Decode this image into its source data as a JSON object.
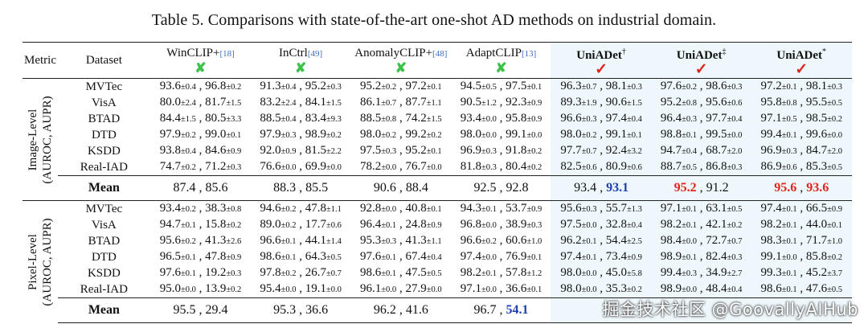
{
  "caption": "Table 5. Comparisons with state-of-the-art one-shot AD methods on industrial domain.",
  "header": {
    "metric": "Metric",
    "dataset": "Dataset",
    "methods": [
      {
        "name": "WinCLIP+",
        "ref": "[18]",
        "check": "✘",
        "check_color": "#3cc24a"
      },
      {
        "name": "InCtrl",
        "ref": "[49]",
        "check": "✘",
        "check_color": "#3cc24a"
      },
      {
        "name": "AnomalyCLIP+",
        "ref": "[48]",
        "check": "✘",
        "check_color": "#3cc24a"
      },
      {
        "name": "AdaptCLIP",
        "ref": "[13]",
        "check": "✘",
        "check_color": "#3cc24a"
      },
      {
        "name": "UniADet",
        "sup": "†",
        "check": "✓",
        "check_color": "#e0241c"
      },
      {
        "name": "UniADet",
        "sup": "‡",
        "check": "✓",
        "check_color": "#e0241c"
      },
      {
        "name": "UniADet",
        "sup": "*",
        "check": "✓",
        "check_color": "#e0241c"
      }
    ]
  },
  "groups": [
    {
      "level": "Image-Level",
      "metric": "(AUROC, AUPR)",
      "rows": [
        {
          "dataset": "MVTec",
          "cells": [
            [
              "93.6",
              "±0.4",
              "96.8",
              "±0.2"
            ],
            [
              "91.3",
              "±0.4",
              "95.2",
              "±0.3"
            ],
            [
              "95.2",
              "±0.2",
              "97.2",
              "±0.1"
            ],
            [
              "94.5",
              "±0.5",
              "97.5",
              "±0.1"
            ],
            [
              "96.3",
              "±0.7",
              "98.1",
              "±0.3"
            ],
            [
              "97.6",
              "±0.2",
              "98.6",
              "±0.3"
            ],
            [
              "97.2",
              "±0.1",
              "98.1",
              "±0.3"
            ]
          ]
        },
        {
          "dataset": "VisA",
          "cells": [
            [
              "80.0",
              "±2.4",
              "81.7",
              "±1.5"
            ],
            [
              "83.2",
              "±2.4",
              "84.1",
              "±1.5"
            ],
            [
              "86.1",
              "±0.7",
              "87.7",
              "±1.1"
            ],
            [
              "90.5",
              "±1.2",
              "92.3",
              "±0.9"
            ],
            [
              "89.3",
              "±1.9",
              "90.6",
              "±1.5"
            ],
            [
              "95.2",
              "±0.8",
              "95.6",
              "±0.6"
            ],
            [
              "95.8",
              "±0.8",
              "95.5",
              "±0.5"
            ]
          ]
        },
        {
          "dataset": "BTAD",
          "cells": [
            [
              "84.4",
              "±1.5",
              "80.5",
              "±3.3"
            ],
            [
              "88.5",
              "±0.4",
              "83.4",
              "±9.3"
            ],
            [
              "88.5",
              "±0.8",
              "74.2",
              "±1.5"
            ],
            [
              "93.4",
              "±0.0",
              "95.8",
              "±0.9"
            ],
            [
              "96.6",
              "±0.3",
              "97.4",
              "±0.4"
            ],
            [
              "96.4",
              "±0.3",
              "97.7",
              "±0.4"
            ],
            [
              "97.1",
              "±0.5",
              "98.5",
              "±0.2"
            ]
          ]
        },
        {
          "dataset": "DTD",
          "cells": [
            [
              "97.9",
              "±0.2",
              "99.0",
              "±0.1"
            ],
            [
              "97.9",
              "±0.3",
              "98.9",
              "±0.2"
            ],
            [
              "98.0",
              "±0.2",
              "99.2",
              "±0.2"
            ],
            [
              "98.0",
              "±0.0",
              "99.1",
              "±0.0"
            ],
            [
              "98.0",
              "±0.2",
              "99.1",
              "±0.1"
            ],
            [
              "98.8",
              "±0.1",
              "99.5",
              "±0.0"
            ],
            [
              "99.4",
              "±0.1",
              "99.6",
              "±0.0"
            ]
          ]
        },
        {
          "dataset": "KSDD",
          "cells": [
            [
              "93.8",
              "±0.4",
              "84.6",
              "±0.9"
            ],
            [
              "92.0",
              "±0.9",
              "81.5",
              "±2.2"
            ],
            [
              "97.5",
              "±0.3",
              "95.2",
              "±0.1"
            ],
            [
              "96.9",
              "±0.3",
              "91.8",
              "±0.2"
            ],
            [
              "97.7",
              "±0.7",
              "92.4",
              "±3.2"
            ],
            [
              "94.7",
              "±0.4",
              "68.7",
              "±2.0"
            ],
            [
              "96.9",
              "±0.3",
              "84.7",
              "±2.0"
            ]
          ]
        },
        {
          "dataset": "Real-IAD",
          "cells": [
            [
              "74.7",
              "±0.2",
              "71.2",
              "±0.3"
            ],
            [
              "76.6",
              "±0.0",
              "69.9",
              "±0.0"
            ],
            [
              "78.2",
              "±0.0",
              "76.7",
              "±0.0"
            ],
            [
              "81.8",
              "±0.3",
              "80.4",
              "±0.2"
            ],
            [
              "82.5",
              "±0.6",
              "80.9",
              "±0.6"
            ],
            [
              "88.7",
              "±0.5",
              "86.8",
              "±0.3"
            ],
            [
              "86.9",
              "±0.6",
              "85.3",
              "±0.5"
            ]
          ]
        }
      ],
      "mean_label": "Mean",
      "mean": [
        [
          {
            "t": "87.4"
          },
          {
            "t": "85.6"
          }
        ],
        [
          {
            "t": "88.3"
          },
          {
            "t": "85.5"
          }
        ],
        [
          {
            "t": "90.6"
          },
          {
            "t": "88.4"
          }
        ],
        [
          {
            "t": "92.5"
          },
          {
            "t": "92.8"
          }
        ],
        [
          {
            "t": "93.4"
          },
          {
            "t": "93.1",
            "s": "blue"
          }
        ],
        [
          {
            "t": "95.2",
            "s": "red"
          },
          {
            "t": "91.2"
          }
        ],
        [
          {
            "t": "95.6",
            "s": "red"
          },
          {
            "t": "93.6",
            "s": "red"
          }
        ]
      ]
    },
    {
      "level": "Pixel-Level",
      "metric": "(AUROC, AUPR)",
      "rows": [
        {
          "dataset": "MVTec",
          "cells": [
            [
              "93.4",
              "±0.2",
              "38.3",
              "±0.8"
            ],
            [
              "94.6",
              "±0.2",
              "47.8",
              "±1.1"
            ],
            [
              "92.8",
              "±0.0",
              "40.8",
              "±0.1"
            ],
            [
              "94.3",
              "±0.1",
              "53.7",
              "±0.9"
            ],
            [
              "95.6",
              "±0.3",
              "55.7",
              "±1.3"
            ],
            [
              "97.1",
              "±0.1",
              "63.1",
              "±0.5"
            ],
            [
              "97.4",
              "±0.1",
              "66.5",
              "±0.9"
            ]
          ]
        },
        {
          "dataset": "VisA",
          "cells": [
            [
              "94.7",
              "±0.1",
              "15.8",
              "±0.2"
            ],
            [
              "89.0",
              "±0.2",
              "17.7",
              "±0.6"
            ],
            [
              "96.4",
              "±0.1",
              "24.8",
              "±0.9"
            ],
            [
              "96.8",
              "±0.0",
              "38.9",
              "±0.3"
            ],
            [
              "97.5",
              "±0.0",
              "32.8",
              "±0.4"
            ],
            [
              "98.2",
              "±0.1",
              "42.1",
              "±0.2"
            ],
            [
              "98.2",
              "±0.1",
              "44.0",
              "±0.1"
            ]
          ]
        },
        {
          "dataset": "BTAD",
          "cells": [
            [
              "95.6",
              "±0.2",
              "41.3",
              "±2.6"
            ],
            [
              "96.6",
              "±0.1",
              "44.1",
              "±1.4"
            ],
            [
              "95.3",
              "±0.3",
              "41.3",
              "±1.1"
            ],
            [
              "96.6",
              "±0.2",
              "60.6",
              "±1.0"
            ],
            [
              "96.2",
              "±0.1",
              "54.4",
              "±2.5"
            ],
            [
              "98.4",
              "±0.0",
              "72.7",
              "±0.7"
            ],
            [
              "98.3",
              "±0.1",
              "71.7",
              "±1.0"
            ]
          ]
        },
        {
          "dataset": "DTD",
          "cells": [
            [
              "96.5",
              "±0.1",
              "47.8",
              "±0.9"
            ],
            [
              "98.6",
              "±0.1",
              "64.3",
              "±0.5"
            ],
            [
              "97.6",
              "±0.1",
              "67.4",
              "±0.4"
            ],
            [
              "97.4",
              "±0.0",
              "76.9",
              "±0.1"
            ],
            [
              "97.4",
              "±0.1",
              "73.4",
              "±0.9"
            ],
            [
              "98.9",
              "±0.1",
              "82.4",
              "±0.3"
            ],
            [
              "99.1",
              "±0.0",
              "85.8",
              "±0.2"
            ]
          ]
        },
        {
          "dataset": "KSDD",
          "cells": [
            [
              "97.6",
              "±0.1",
              "19.2",
              "±0.3"
            ],
            [
              "97.8",
              "±0.2",
              "26.7",
              "±0.7"
            ],
            [
              "98.6",
              "±0.1",
              "47.5",
              "±0.5"
            ],
            [
              "98.2",
              "±0.1",
              "57.8",
              "±1.2"
            ],
            [
              "98.0",
              "±0.0",
              "45.0",
              "±5.8"
            ],
            [
              "99.4",
              "±0.3",
              "34.9",
              "±2.7"
            ],
            [
              "99.3",
              "±0.1",
              "45.2",
              "±3.7"
            ]
          ]
        },
        {
          "dataset": "Real-IAD",
          "cells": [
            [
              "95.0",
              "±0.0",
              "13.9",
              "±0.2"
            ],
            [
              "95.4",
              "±0.0",
              "19.1",
              "±0.0"
            ],
            [
              "96.1",
              "±0.0",
              "27.9",
              "±0.0"
            ],
            [
              "97.1",
              "±0.0",
              "36.6",
              "±0.1"
            ],
            [
              "98.0",
              "±0.0",
              "35.3",
              "±0.2"
            ],
            [
              "98.9",
              "±0.0",
              "48.4",
              "±0.4"
            ],
            [
              "98.6",
              "±0.1",
              "47.6",
              "±0.5"
            ]
          ]
        }
      ],
      "mean_label": "Mean",
      "mean": [
        [
          {
            "t": "95.5"
          },
          {
            "t": "29.4"
          }
        ],
        [
          {
            "t": "95.3"
          },
          {
            "t": "36.6"
          }
        ],
        [
          {
            "t": "96.2"
          },
          {
            "t": "41.6"
          }
        ],
        [
          {
            "t": "96.7"
          },
          {
            "t": "54.1",
            "s": "blue"
          }
        ],
        [
          {
            "t": ""
          },
          {
            "t": ""
          }
        ],
        [
          {
            "t": ""
          },
          {
            "t": ""
          }
        ],
        [
          {
            "t": ""
          },
          {
            "t": ""
          }
        ]
      ]
    }
  ],
  "watermark": "掘金技术社区 @GoovallyAIHub",
  "colors": {
    "check_green": "#3cc24a",
    "check_red": "#e0241c",
    "best_red": "#e0241c",
    "second_blue": "#1f3fb0",
    "highlight_bg": "#eef7fb"
  }
}
